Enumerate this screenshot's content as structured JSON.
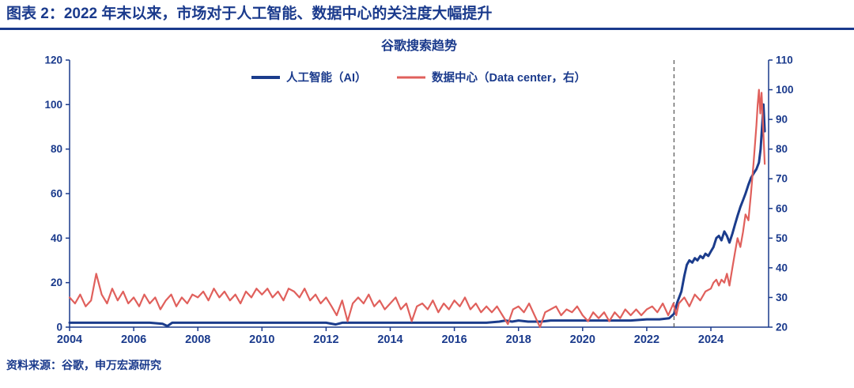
{
  "header": {
    "title": "图表 2：2022 年末以来，市场对于人工智能、数据中心的关注度大幅提升"
  },
  "footer": {
    "source": "资料来源：谷歌，申万宏源研究"
  },
  "colors": {
    "navy": "#1a3a8c",
    "dash": "#555555"
  },
  "chart_data": {
    "type": "line",
    "title": "谷歌搜索趋势",
    "x_range": [
      2004,
      2025.8
    ],
    "x_ticks": [
      2004,
      2006,
      2008,
      2010,
      2012,
      2014,
      2016,
      2018,
      2020,
      2022,
      2024
    ],
    "left_axis": {
      "range": [
        0,
        120
      ],
      "ticks": [
        0,
        20,
        40,
        60,
        80,
        100,
        120
      ]
    },
    "right_axis": {
      "range": [
        20,
        110
      ],
      "ticks": [
        20,
        30,
        40,
        50,
        60,
        70,
        80,
        90,
        100,
        110
      ]
    },
    "annotation_line_x": 2022.85,
    "legend_position": "top-center",
    "grid": false,
    "series": [
      {
        "name": "人工智能（AI）",
        "axis": "left",
        "color": "#1b3c8c",
        "points": [
          [
            2004,
            2
          ],
          [
            2004.5,
            2
          ],
          [
            2005,
            2
          ],
          [
            2005.5,
            2
          ],
          [
            2006,
            2
          ],
          [
            2006.5,
            2
          ],
          [
            2006.9,
            1.5
          ],
          [
            2007.05,
            0.5
          ],
          [
            2007.2,
            2
          ],
          [
            2007.6,
            2
          ],
          [
            2008,
            2
          ],
          [
            2008.5,
            2
          ],
          [
            2009,
            2
          ],
          [
            2009.5,
            2
          ],
          [
            2010,
            2
          ],
          [
            2010.5,
            2
          ],
          [
            2011,
            2
          ],
          [
            2011.5,
            2
          ],
          [
            2012,
            2
          ],
          [
            2012.3,
            1.2
          ],
          [
            2012.5,
            2
          ],
          [
            2013,
            2
          ],
          [
            2013.5,
            2
          ],
          [
            2014,
            2
          ],
          [
            2014.5,
            2
          ],
          [
            2015,
            2
          ],
          [
            2015.5,
            2
          ],
          [
            2016,
            2
          ],
          [
            2016.5,
            2
          ],
          [
            2017,
            2
          ],
          [
            2017.4,
            2.5
          ],
          [
            2017.6,
            3
          ],
          [
            2017.8,
            2.5
          ],
          [
            2018,
            3
          ],
          [
            2018.3,
            2.5
          ],
          [
            2018.7,
            2.5
          ],
          [
            2019,
            3
          ],
          [
            2019.5,
            3
          ],
          [
            2020,
            3
          ],
          [
            2020.5,
            3
          ],
          [
            2021,
            3
          ],
          [
            2021.5,
            3
          ],
          [
            2022,
            3.5
          ],
          [
            2022.4,
            3.5
          ],
          [
            2022.7,
            4
          ],
          [
            2022.85,
            6
          ],
          [
            2022.95,
            11
          ],
          [
            2023,
            13
          ],
          [
            2023.08,
            16
          ],
          [
            2023.17,
            23
          ],
          [
            2023.25,
            28
          ],
          [
            2023.33,
            30
          ],
          [
            2023.42,
            29
          ],
          [
            2023.5,
            31
          ],
          [
            2023.58,
            30
          ],
          [
            2023.67,
            32
          ],
          [
            2023.75,
            31
          ],
          [
            2023.83,
            33
          ],
          [
            2023.92,
            32
          ],
          [
            2024,
            34
          ],
          [
            2024.08,
            36
          ],
          [
            2024.17,
            40
          ],
          [
            2024.25,
            41
          ],
          [
            2024.33,
            39
          ],
          [
            2024.42,
            43
          ],
          [
            2024.5,
            41
          ],
          [
            2024.58,
            38
          ],
          [
            2024.67,
            42
          ],
          [
            2024.75,
            46
          ],
          [
            2024.83,
            50
          ],
          [
            2024.92,
            54
          ],
          [
            2025,
            57
          ],
          [
            2025.08,
            60
          ],
          [
            2025.17,
            64
          ],
          [
            2025.25,
            67
          ],
          [
            2025.33,
            69
          ],
          [
            2025.42,
            71
          ],
          [
            2025.5,
            74
          ],
          [
            2025.55,
            80
          ],
          [
            2025.6,
            91
          ],
          [
            2025.64,
            100
          ],
          [
            2025.68,
            88
          ]
        ]
      },
      {
        "name": "数据中心（Data center，右）",
        "axis": "right",
        "color": "#e0605c",
        "points": [
          [
            2004,
            30
          ],
          [
            2004.17,
            28
          ],
          [
            2004.33,
            31
          ],
          [
            2004.5,
            27
          ],
          [
            2004.67,
            29
          ],
          [
            2004.83,
            38
          ],
          [
            2005,
            31
          ],
          [
            2005.17,
            28
          ],
          [
            2005.33,
            33
          ],
          [
            2005.5,
            29
          ],
          [
            2005.67,
            32
          ],
          [
            2005.83,
            28
          ],
          [
            2006,
            30
          ],
          [
            2006.17,
            27
          ],
          [
            2006.33,
            31
          ],
          [
            2006.5,
            28
          ],
          [
            2006.67,
            30
          ],
          [
            2006.83,
            26
          ],
          [
            2007,
            29
          ],
          [
            2007.17,
            31
          ],
          [
            2007.33,
            27
          ],
          [
            2007.5,
            30
          ],
          [
            2007.67,
            28
          ],
          [
            2007.83,
            31
          ],
          [
            2008,
            30
          ],
          [
            2008.17,
            32
          ],
          [
            2008.33,
            29
          ],
          [
            2008.5,
            33
          ],
          [
            2008.67,
            30
          ],
          [
            2008.83,
            32
          ],
          [
            2009,
            29
          ],
          [
            2009.17,
            31
          ],
          [
            2009.33,
            28
          ],
          [
            2009.5,
            32
          ],
          [
            2009.67,
            30
          ],
          [
            2009.83,
            33
          ],
          [
            2010,
            31
          ],
          [
            2010.17,
            33
          ],
          [
            2010.33,
            30
          ],
          [
            2010.5,
            32
          ],
          [
            2010.67,
            29
          ],
          [
            2010.83,
            33
          ],
          [
            2011,
            32
          ],
          [
            2011.17,
            30
          ],
          [
            2011.33,
            33
          ],
          [
            2011.5,
            29
          ],
          [
            2011.67,
            31
          ],
          [
            2011.83,
            28
          ],
          [
            2012,
            30
          ],
          [
            2012.17,
            27
          ],
          [
            2012.33,
            24
          ],
          [
            2012.5,
            29
          ],
          [
            2012.67,
            22
          ],
          [
            2012.83,
            28
          ],
          [
            2013,
            30
          ],
          [
            2013.17,
            28
          ],
          [
            2013.33,
            31
          ],
          [
            2013.5,
            27
          ],
          [
            2013.67,
            29
          ],
          [
            2013.83,
            26
          ],
          [
            2014,
            28
          ],
          [
            2014.17,
            30
          ],
          [
            2014.33,
            26
          ],
          [
            2014.5,
            28
          ],
          [
            2014.67,
            22
          ],
          [
            2014.83,
            27
          ],
          [
            2015,
            28
          ],
          [
            2015.17,
            26
          ],
          [
            2015.33,
            29
          ],
          [
            2015.5,
            25
          ],
          [
            2015.67,
            28
          ],
          [
            2015.83,
            26
          ],
          [
            2016,
            29
          ],
          [
            2016.17,
            27
          ],
          [
            2016.33,
            30
          ],
          [
            2016.5,
            26
          ],
          [
            2016.67,
            28
          ],
          [
            2016.83,
            25
          ],
          [
            2017,
            27
          ],
          [
            2017.17,
            25
          ],
          [
            2017.33,
            27
          ],
          [
            2017.5,
            24
          ],
          [
            2017.67,
            21
          ],
          [
            2017.83,
            26
          ],
          [
            2018,
            27
          ],
          [
            2018.17,
            25
          ],
          [
            2018.33,
            28
          ],
          [
            2018.5,
            24
          ],
          [
            2018.67,
            20
          ],
          [
            2018.83,
            25
          ],
          [
            2019,
            26
          ],
          [
            2019.17,
            27
          ],
          [
            2019.33,
            24
          ],
          [
            2019.5,
            26
          ],
          [
            2019.67,
            25
          ],
          [
            2019.83,
            27
          ],
          [
            2020,
            24
          ],
          [
            2020.17,
            22
          ],
          [
            2020.33,
            25
          ],
          [
            2020.5,
            23
          ],
          [
            2020.67,
            25
          ],
          [
            2020.83,
            22
          ],
          [
            2021,
            25
          ],
          [
            2021.17,
            23
          ],
          [
            2021.33,
            26
          ],
          [
            2021.5,
            24
          ],
          [
            2021.67,
            26
          ],
          [
            2021.83,
            24
          ],
          [
            2022,
            26
          ],
          [
            2022.17,
            27
          ],
          [
            2022.33,
            25
          ],
          [
            2022.5,
            28
          ],
          [
            2022.67,
            24
          ],
          [
            2022.83,
            28
          ],
          [
            2022.92,
            24
          ],
          [
            2023,
            28
          ],
          [
            2023.17,
            30
          ],
          [
            2023.33,
            27
          ],
          [
            2023.5,
            31
          ],
          [
            2023.67,
            29
          ],
          [
            2023.83,
            32
          ],
          [
            2024,
            33
          ],
          [
            2024.08,
            35
          ],
          [
            2024.17,
            36
          ],
          [
            2024.25,
            34
          ],
          [
            2024.33,
            36
          ],
          [
            2024.42,
            35
          ],
          [
            2024.5,
            38
          ],
          [
            2024.58,
            34
          ],
          [
            2024.67,
            40
          ],
          [
            2024.75,
            45
          ],
          [
            2024.83,
            50
          ],
          [
            2024.92,
            47
          ],
          [
            2025,
            52
          ],
          [
            2025.08,
            58
          ],
          [
            2025.17,
            56
          ],
          [
            2025.25,
            65
          ],
          [
            2025.33,
            75
          ],
          [
            2025.42,
            88
          ],
          [
            2025.46,
            95
          ],
          [
            2025.5,
            100
          ],
          [
            2025.54,
            92
          ],
          [
            2025.58,
            99
          ],
          [
            2025.62,
            90
          ],
          [
            2025.68,
            75
          ]
        ]
      }
    ]
  }
}
